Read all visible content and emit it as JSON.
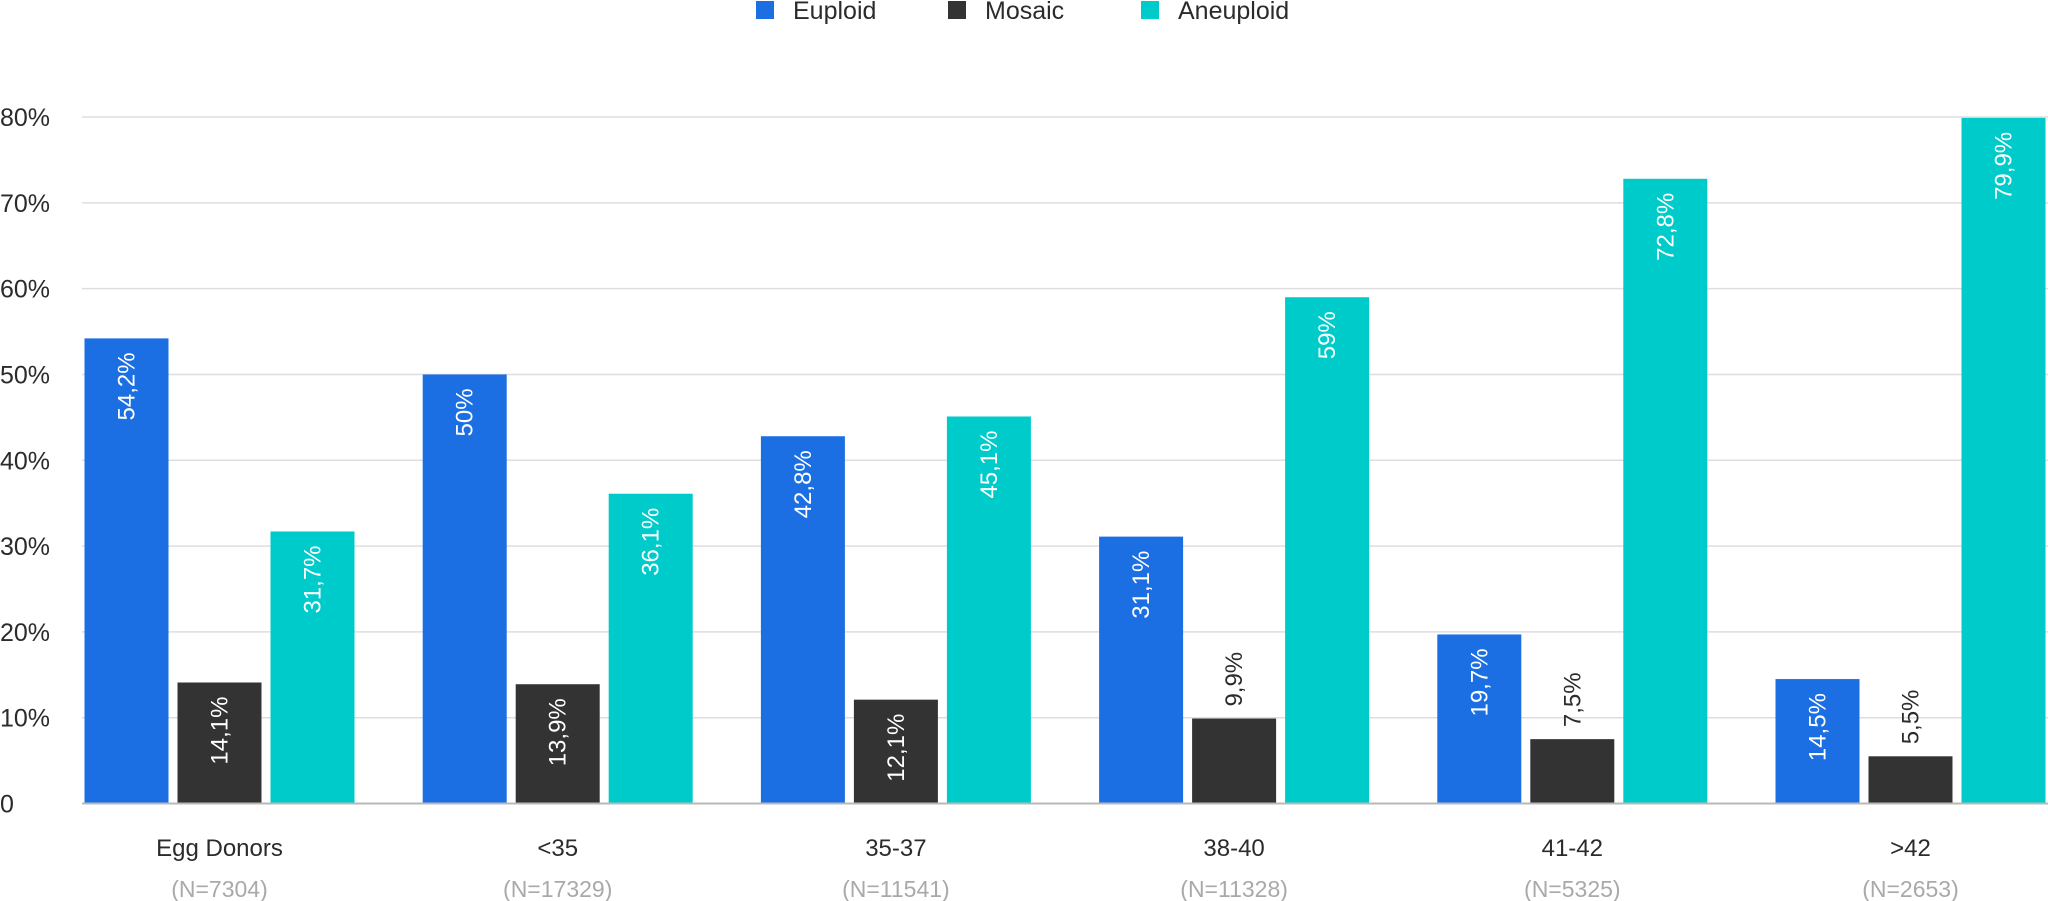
{
  "chart_data": {
    "type": "bar",
    "categories": [
      "Egg Donors",
      "<35",
      "35-37",
      "38-40",
      "41-42",
      ">42"
    ],
    "sample_sizes": [
      "(N=7304)",
      "(N=17329)",
      "(N=11541)",
      "(N=11328)",
      "(N=5325)",
      "(N=2653)"
    ],
    "series": [
      {
        "name": "Euploid",
        "color": "#1b6fe2",
        "values": [
          54.2,
          50,
          42.8,
          31.1,
          19.7,
          14.5
        ],
        "labels": [
          "54,2%",
          "50%",
          "42,8%",
          "31,1%",
          "19,7%",
          "14,5%"
        ]
      },
      {
        "name": "Mosaic",
        "color": "#333333",
        "values": [
          14.1,
          13.9,
          12.1,
          9.9,
          7.5,
          5.5
        ],
        "labels": [
          "14,1%",
          "13,9%",
          "12,1%",
          "9,9%",
          "7,5%",
          "5,5%"
        ]
      },
      {
        "name": "Aneuploid",
        "color": "#00cbcb",
        "values": [
          31.7,
          36.1,
          45.1,
          59,
          72.8,
          79.9
        ],
        "labels": [
          "31,7%",
          "36,1%",
          "45,1%",
          "59%",
          "72,8%",
          "79,9%"
        ]
      }
    ],
    "y_ticks": [
      "0",
      "10%",
      "20%",
      "30%",
      "40%",
      "50%",
      "60%",
      "70%",
      "80%"
    ],
    "ylim": [
      0,
      80
    ],
    "legend_position": "top-center",
    "grid": true,
    "title": "",
    "xlabel": "",
    "ylabel": ""
  }
}
